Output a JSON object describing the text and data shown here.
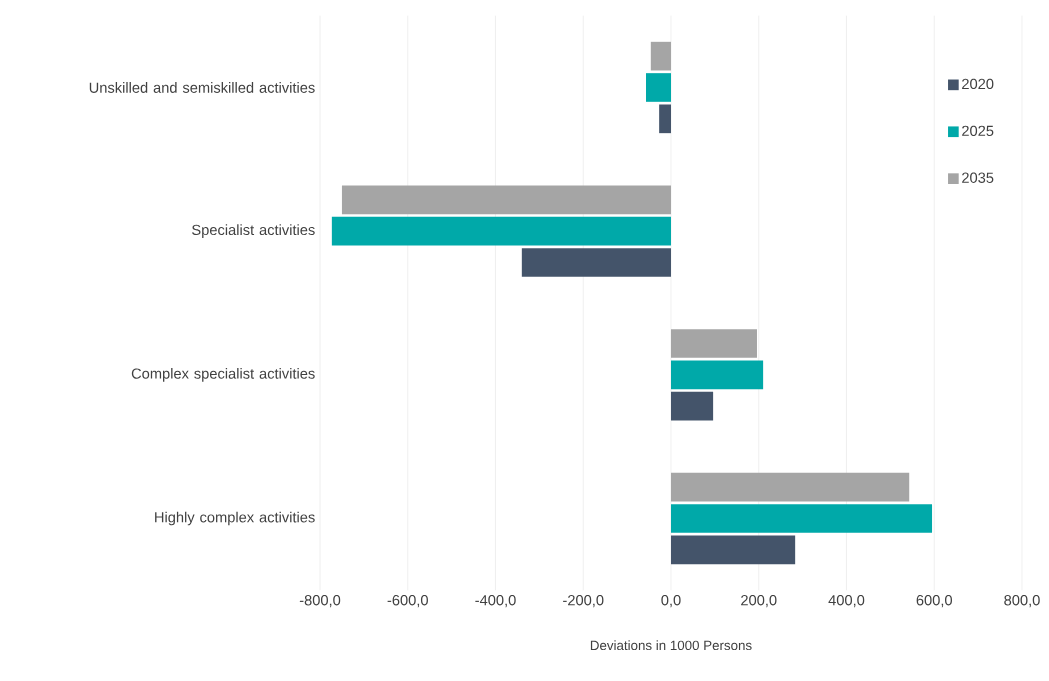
{
  "chart_data": {
    "type": "bar",
    "orientation": "horizontal",
    "xlabel": "Deviations in 1000 Persons",
    "categories": [
      "Unskilled and semiskilled activities",
      "Specialist activities",
      "Complex specialist activities",
      "Highly complex activities"
    ],
    "series": [
      {
        "name": "2020",
        "color": "#44546a",
        "values": [
          -27,
          -340,
          96,
          283
        ]
      },
      {
        "name": "2025",
        "color": "#00a9a9",
        "values": [
          -57,
          -773,
          210,
          595
        ]
      },
      {
        "name": "2035",
        "color": "#a5a5a5",
        "values": [
          -46,
          -750,
          196,
          543
        ]
      }
    ],
    "xlim": [
      -800,
      800
    ],
    "xticks": [
      {
        "value": -800,
        "label": "-800,0"
      },
      {
        "value": -600,
        "label": "-600,0"
      },
      {
        "value": -400,
        "label": "-400,0"
      },
      {
        "value": -200,
        "label": "-200,0"
      },
      {
        "value": 0,
        "label": "0,0"
      },
      {
        "value": 200,
        "label": "200,0"
      },
      {
        "value": 400,
        "label": "400,0"
      },
      {
        "value": 600,
        "label": "600,0"
      },
      {
        "value": 800,
        "label": "800,0"
      }
    ],
    "grid": "x",
    "legend": "top right"
  }
}
